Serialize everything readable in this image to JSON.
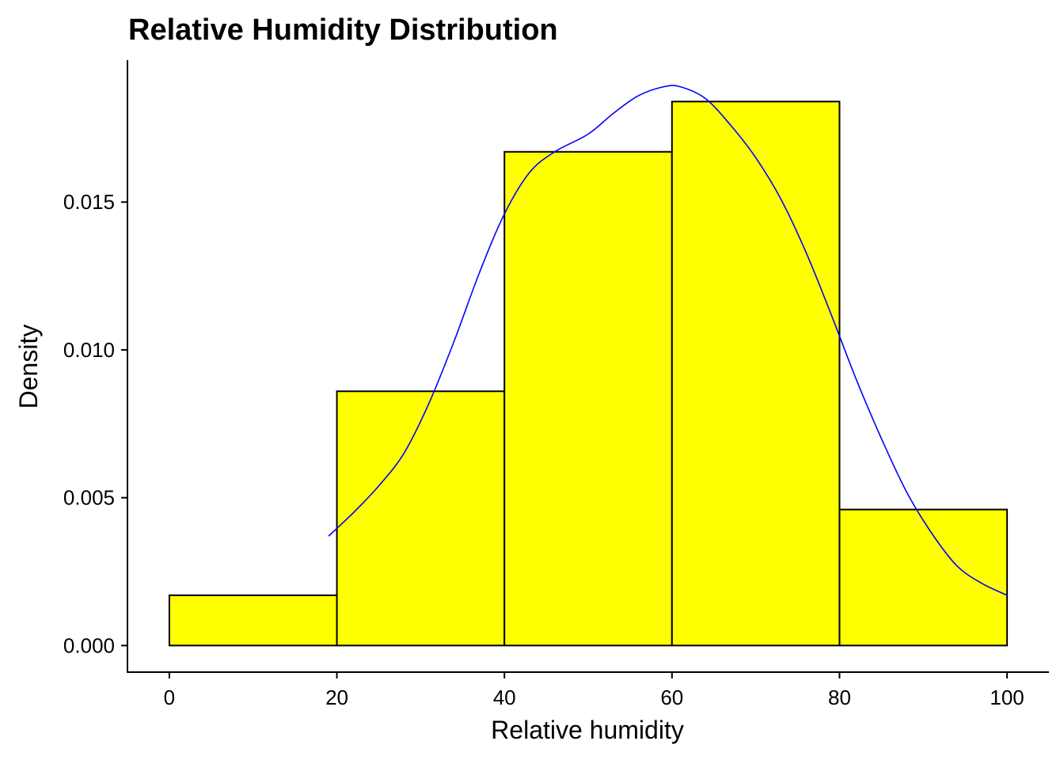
{
  "chart_data": {
    "type": "bar",
    "subtype": "histogram",
    "title": "Relative Humidity Distribution",
    "xlabel": "Relative humidity",
    "ylabel": "Density",
    "bins": [
      {
        "start": 0,
        "end": 20,
        "density": 0.0017
      },
      {
        "start": 20,
        "end": 40,
        "density": 0.0086
      },
      {
        "start": 40,
        "end": 60,
        "density": 0.0167
      },
      {
        "start": 60,
        "end": 80,
        "density": 0.0184
      },
      {
        "start": 80,
        "end": 100,
        "density": 0.0046
      }
    ],
    "density_curve": {
      "x": [
        19,
        22,
        25,
        28,
        31,
        34,
        37,
        40,
        43,
        46,
        50,
        53,
        56,
        59,
        61,
        64,
        67,
        70,
        73,
        76,
        79,
        82,
        85,
        88,
        91,
        94,
        97,
        100
      ],
      "y": [
        0.0037,
        0.0045,
        0.0054,
        0.0065,
        0.0082,
        0.0103,
        0.0126,
        0.0146,
        0.016,
        0.0167,
        0.0173,
        0.018,
        0.0186,
        0.0189,
        0.0189,
        0.0185,
        0.0176,
        0.0165,
        0.0151,
        0.0133,
        0.0112,
        0.009,
        0.007,
        0.0052,
        0.0038,
        0.0027,
        0.0021,
        0.0017
      ]
    },
    "xlim": [
      -5,
      105
    ],
    "ylim": [
      -0.0009,
      0.0198
    ],
    "x_ticks": [
      0,
      20,
      40,
      60,
      80,
      100
    ],
    "x_tick_labels": [
      "0",
      "20",
      "40",
      "60",
      "80",
      "100"
    ],
    "y_ticks": [
      0,
      0.005,
      0.01,
      0.015
    ],
    "y_tick_labels": [
      "0.000",
      "0.005",
      "0.010",
      "0.015"
    ],
    "grid": false,
    "legend": "none",
    "colors": {
      "bar_fill": "#ffff00",
      "bar_stroke": "#000000",
      "curve": "#0000ff",
      "axis": "#000000"
    }
  }
}
